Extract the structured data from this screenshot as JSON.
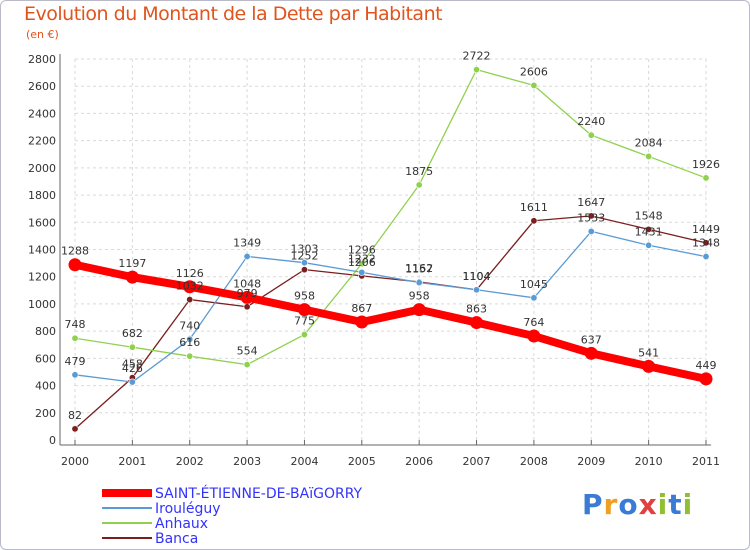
{
  "title": "Evolution du Montant de la Dette par Habitant",
  "subtitle": "(en €)",
  "logo": {
    "text": "Proxiti",
    "colors": [
      "#3a7bd5",
      "#f0a020",
      "#3a7bd5",
      "#e04040",
      "#90c030",
      "#3a7bd5",
      "#90c030"
    ]
  },
  "chart_data": {
    "type": "line",
    "title": "Evolution du Montant de la Dette par Habitant",
    "ylabel": "(en €)",
    "x": [
      "2000",
      "2001",
      "2002",
      "2003",
      "2004",
      "2005",
      "2006",
      "2007",
      "2008",
      "2009",
      "2010",
      "2011"
    ],
    "ylim": [
      0,
      2800
    ],
    "yticks": [
      "0",
      "200",
      "400",
      "600",
      "800",
      "1000",
      "1200",
      "1400",
      "1600",
      "1800",
      "2000",
      "2200",
      "2400",
      "2600",
      "2800"
    ],
    "grid": true,
    "legend_position": "bottom-left",
    "series": [
      {
        "name": "SAINT-ÉTIENNE-DE-BAïGORRY",
        "color": "#ff0000",
        "values": [
          1288,
          1197,
          1126,
          1048,
          958,
          867,
          958,
          863,
          764,
          637,
          541,
          449
        ],
        "labels": [
          "1288",
          "1197",
          "1126",
          "1048",
          "958",
          "867",
          "958",
          "863",
          "764",
          "637",
          "541",
          "449"
        ]
      },
      {
        "name": "Irouléguy",
        "color": "#5b9bd5",
        "values": [
          479,
          426,
          740,
          1349,
          1303,
          1232,
          1157,
          1104,
          1045,
          1533,
          1431,
          1348
        ],
        "labels": [
          "479",
          "426",
          "740",
          "1349",
          "1303",
          "1232",
          "1157",
          "1104",
          "1045",
          "1533",
          "1431",
          "1348"
        ]
      },
      {
        "name": "Anhaux",
        "color": "#8fd14f",
        "values": [
          748,
          682,
          616,
          554,
          775,
          1296,
          1875,
          2722,
          2606,
          2240,
          2084,
          1926
        ],
        "labels": [
          "748",
          "682",
          "616",
          "554",
          "775",
          "1296",
          "1875",
          "2722",
          "2606",
          "2240",
          "2084",
          "1926"
        ]
      },
      {
        "name": "Banca",
        "color": "#7b1e1e",
        "values": [
          82,
          458,
          1032,
          979,
          1252,
          1206,
          1162,
          1104,
          1611,
          1647,
          1548,
          1449
        ],
        "labels": [
          "82",
          "458",
          "1032",
          "979",
          "1252",
          "1206",
          "1162",
          "1104",
          "1611",
          "1647",
          "1548",
          "1449"
        ]
      }
    ]
  }
}
